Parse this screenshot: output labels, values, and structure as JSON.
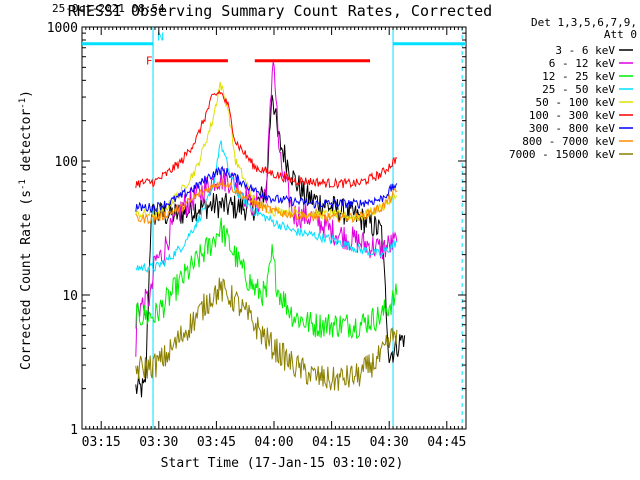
{
  "chart_data": {
    "type": "line",
    "title": "RHESSI Observing Summary Count Rates, Corrected",
    "xlabel": "Start Time (17-Jan-15 03:10:02)",
    "ylabel_main": "Corrected Count Rate (s",
    "ylabel_sup1": "-1",
    "ylabel_mid": " detector",
    "ylabel_sup2": "-1",
    "ylabel_end": ")",
    "y_scale": "log",
    "ylim": [
      1,
      1000
    ],
    "xlim_minutes": [
      0,
      100
    ],
    "x_ticks": [
      {
        "label": "03:15",
        "minute": 5
      },
      {
        "label": "03:30",
        "minute": 20
      },
      {
        "label": "03:45",
        "minute": 35
      },
      {
        "label": "04:00",
        "minute": 50
      },
      {
        "label": "04:15",
        "minute": 65
      },
      {
        "label": "04:30",
        "minute": 80
      },
      {
        "label": "04:45",
        "minute": 95
      }
    ],
    "y_ticks": [
      {
        "label": "1",
        "value": 1
      },
      {
        "label": "10",
        "value": 10
      },
      {
        "label": "100",
        "value": 100
      },
      {
        "label": "1000",
        "value": 1000
      }
    ],
    "legend_header": [
      "Det 1,3,5,6,7,9,",
      "Att 0"
    ],
    "timestamp": "25-Oct-2021 08:54",
    "flag_labels": {
      "F": "F",
      "N": "N"
    },
    "night_bars": [
      [
        0,
        18.5
      ],
      [
        81,
        100
      ]
    ],
    "night_markers": [
      18.5,
      81
    ],
    "saa_dashes": [
      18.5,
      99
    ],
    "flare_bars": [
      [
        19,
        38
      ],
      [
        45,
        75
      ]
    ],
    "series": [
      {
        "name": "3 - 6 keV",
        "color": "#000000",
        "points": [
          [
            14,
            2
          ],
          [
            16.5,
            2
          ],
          [
            18,
            40
          ],
          [
            25,
            40
          ],
          [
            30,
            45
          ],
          [
            35,
            47
          ],
          [
            40,
            45
          ],
          [
            45,
            45
          ],
          [
            48,
            60
          ],
          [
            49.5,
            350
          ],
          [
            51,
            150
          ],
          [
            55,
            75
          ],
          [
            58,
            55
          ],
          [
            65,
            45
          ],
          [
            72,
            38
          ],
          [
            78,
            30
          ],
          [
            80,
            3.5
          ],
          [
            84,
            5
          ]
        ]
      },
      {
        "name": "6 - 12 keV",
        "color": "#e000e0",
        "points": [
          [
            14,
            3
          ],
          [
            14.3,
            8
          ],
          [
            16,
            8.5
          ],
          [
            18,
            10
          ],
          [
            19,
            18
          ],
          [
            21,
            20
          ],
          [
            23,
            30
          ],
          [
            26,
            45
          ],
          [
            30,
            55
          ],
          [
            35,
            75
          ],
          [
            40,
            70
          ],
          [
            45,
            45
          ],
          [
            48,
            60
          ],
          [
            49.8,
            650
          ],
          [
            51.5,
            100
          ],
          [
            55,
            40
          ],
          [
            60,
            38
          ],
          [
            65,
            30
          ],
          [
            72,
            25
          ],
          [
            78,
            22
          ],
          [
            82,
            25
          ]
        ]
      },
      {
        "name": "12 - 25 keV",
        "color": "#00ee00",
        "points": [
          [
            14,
            7
          ],
          [
            19,
            7
          ],
          [
            22,
            9
          ],
          [
            26,
            13
          ],
          [
            30,
            18
          ],
          [
            34,
            25
          ],
          [
            36,
            32
          ],
          [
            38,
            25
          ],
          [
            42,
            15
          ],
          [
            45,
            11
          ],
          [
            48,
            10
          ],
          [
            49.5,
            20
          ],
          [
            51,
            11
          ],
          [
            55,
            7
          ],
          [
            60,
            6
          ],
          [
            65,
            6
          ],
          [
            72,
            6
          ],
          [
            78,
            7
          ],
          [
            82,
            10
          ]
        ]
      },
      {
        "name": "25 - 50 keV",
        "color": "#00e0ff",
        "points": [
          [
            14,
            16
          ],
          [
            19,
            16
          ],
          [
            22,
            18
          ],
          [
            26,
            23
          ],
          [
            30,
            35
          ],
          [
            34,
            60
          ],
          [
            36,
            140
          ],
          [
            38,
            90
          ],
          [
            40,
            60
          ],
          [
            45,
            42
          ],
          [
            50,
            35
          ],
          [
            55,
            30
          ],
          [
            60,
            28
          ],
          [
            65,
            26
          ],
          [
            72,
            22
          ],
          [
            78,
            20
          ],
          [
            82,
            25
          ]
        ]
      },
      {
        "name": "50 - 100 keV",
        "color": "#e0e000",
        "points": [
          [
            14,
            40
          ],
          [
            19,
            40
          ],
          [
            22,
            45
          ],
          [
            26,
            60
          ],
          [
            30,
            90
          ],
          [
            34,
            200
          ],
          [
            36,
            380
          ],
          [
            38,
            250
          ],
          [
            40,
            100
          ],
          [
            45,
            50
          ],
          [
            50,
            42
          ],
          [
            55,
            42
          ],
          [
            60,
            40
          ],
          [
            65,
            40
          ],
          [
            72,
            38
          ],
          [
            78,
            45
          ],
          [
            82,
            55
          ]
        ]
      },
      {
        "name": "100 - 300 keV",
        "color": "#ff0000",
        "points": [
          [
            14,
            68
          ],
          [
            19,
            70
          ],
          [
            22,
            80
          ],
          [
            26,
            100
          ],
          [
            30,
            150
          ],
          [
            34,
            300
          ],
          [
            36,
            330
          ],
          [
            38,
            260
          ],
          [
            40,
            140
          ],
          [
            45,
            90
          ],
          [
            50,
            80
          ],
          [
            55,
            72
          ],
          [
            60,
            70
          ],
          [
            65,
            68
          ],
          [
            72,
            68
          ],
          [
            78,
            80
          ],
          [
            82,
            105
          ]
        ]
      },
      {
        "name": "300 - 800 keV",
        "color": "#0000ff",
        "points": [
          [
            14,
            45
          ],
          [
            19,
            45
          ],
          [
            22,
            48
          ],
          [
            26,
            55
          ],
          [
            30,
            65
          ],
          [
            34,
            80
          ],
          [
            36,
            85
          ],
          [
            38,
            82
          ],
          [
            40,
            75
          ],
          [
            45,
            60
          ],
          [
            50,
            52
          ],
          [
            55,
            50
          ],
          [
            60,
            48
          ],
          [
            65,
            48
          ],
          [
            72,
            48
          ],
          [
            78,
            52
          ],
          [
            82,
            68
          ]
        ]
      },
      {
        "name": "800 - 7000 keV",
        "color": "#ff8c00",
        "points": [
          [
            14,
            37
          ],
          [
            19,
            37
          ],
          [
            22,
            40
          ],
          [
            26,
            45
          ],
          [
            30,
            55
          ],
          [
            34,
            65
          ],
          [
            36,
            70
          ],
          [
            38,
            68
          ],
          [
            40,
            60
          ],
          [
            45,
            48
          ],
          [
            50,
            42
          ],
          [
            55,
            40
          ],
          [
            60,
            38
          ],
          [
            65,
            38
          ],
          [
            72,
            38
          ],
          [
            78,
            45
          ],
          [
            82,
            60
          ]
        ]
      },
      {
        "name": "7000 - 15000 keV",
        "color": "#8b8000",
        "points": [
          [
            14,
            2.8
          ],
          [
            19,
            3
          ],
          [
            22,
            3.5
          ],
          [
            26,
            5
          ],
          [
            30,
            7
          ],
          [
            34,
            10
          ],
          [
            36,
            11
          ],
          [
            38,
            10
          ],
          [
            40,
            9
          ],
          [
            45,
            6
          ],
          [
            50,
            4
          ],
          [
            55,
            3
          ],
          [
            60,
            2.5
          ],
          [
            65,
            2.3
          ],
          [
            72,
            2.5
          ],
          [
            78,
            3.5
          ],
          [
            82,
            5.5
          ]
        ]
      }
    ]
  }
}
